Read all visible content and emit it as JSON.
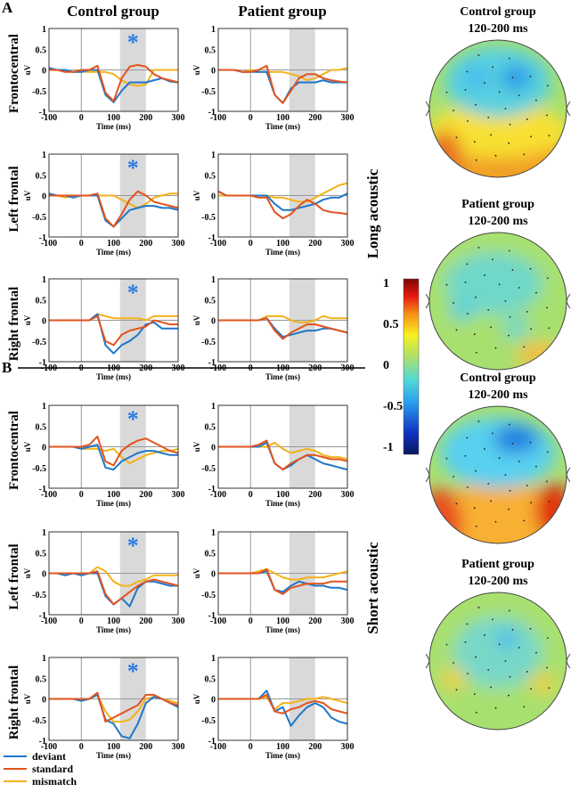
{
  "colors": {
    "deviant": "#1f77c9",
    "standard": "#e2531e",
    "mismatch": "#f2b21b",
    "window": "#d9d9d9",
    "asterisk": "#2a7ae2"
  },
  "labels": {
    "panel_a": "A",
    "panel_b": "B",
    "col_control": "Control group",
    "col_patient": "Patient group",
    "long": "Long acoustic",
    "short": "Short acoustic",
    "rows": [
      "Frontocentral",
      "Left frontal",
      "Right frontal",
      "Frontocentral",
      "Left frontal",
      "Right frontal"
    ],
    "asterisk": "*"
  },
  "legend": [
    {
      "key": "deviant",
      "label": "deviant"
    },
    {
      "key": "standard",
      "label": "standard"
    },
    {
      "key": "mismatch",
      "label": "mismatch"
    }
  ],
  "topomaps": [
    {
      "title": "Control group",
      "window": "120-200 ms"
    },
    {
      "title": "Patient group",
      "window": "120-200 ms"
    },
    {
      "title": "Control group",
      "window": "120-200 ms"
    },
    {
      "title": "Patient group",
      "window": "120-200 ms"
    }
  ],
  "colorbar": {
    "ticks": [
      "1",
      "0.5",
      "0",
      "-0.5",
      "-1"
    ],
    "range": [
      -1,
      1
    ]
  },
  "chart_data": {
    "type": "line",
    "xlabel": "Time (ms)",
    "ylabel": "uV",
    "xlim": [
      -100,
      300
    ],
    "ylim": [
      -1,
      1
    ],
    "xticks": [
      "-100",
      "0",
      "100",
      "200",
      "300"
    ],
    "yticks": [
      "1",
      "0.5",
      "0",
      "-0.5",
      "-1"
    ],
    "shaded_window": [
      120,
      200
    ],
    "x": [
      -100,
      -75,
      -50,
      -25,
      0,
      25,
      50,
      75,
      100,
      125,
      150,
      175,
      200,
      225,
      250,
      275,
      300
    ],
    "panels": [
      {
        "condition": "Long acoustic",
        "region": "Frontocentral",
        "group": "Control group",
        "significant": true,
        "series": {
          "deviant": [
            0.05,
            0,
            0,
            -0.05,
            -0.05,
            0,
            0,
            -0.6,
            -0.78,
            -0.5,
            -0.3,
            -0.3,
            -0.3,
            -0.25,
            -0.2,
            -0.28,
            -0.3
          ],
          "standard": [
            0,
            0,
            -0.05,
            -0.05,
            0,
            0,
            0.1,
            -0.55,
            -0.75,
            -0.2,
            0.08,
            0.12,
            0.08,
            -0.1,
            -0.2,
            -0.25,
            -0.3
          ],
          "mismatch": [
            0,
            0,
            0,
            -0.05,
            -0.05,
            -0.05,
            -0.05,
            -0.05,
            -0.1,
            -0.25,
            -0.35,
            -0.38,
            -0.35,
            0,
            0,
            0,
            0
          ]
        }
      },
      {
        "condition": "Long acoustic",
        "region": "Frontocentral",
        "group": "Patient group",
        "significant": false,
        "series": {
          "deviant": [
            0,
            0,
            0,
            -0.05,
            -0.05,
            -0.05,
            -0.05,
            -0.6,
            -0.8,
            -0.45,
            -0.3,
            -0.3,
            -0.3,
            -0.25,
            -0.3,
            -0.3,
            -0.3
          ],
          "standard": [
            0,
            0,
            0,
            -0.05,
            -0.05,
            0,
            0.1,
            -0.6,
            -0.8,
            -0.5,
            -0.2,
            -0.1,
            -0.1,
            -0.2,
            -0.25,
            -0.28,
            -0.3
          ],
          "mismatch": [
            0,
            0,
            0,
            -0.05,
            0,
            -0.05,
            -0.05,
            -0.05,
            -0.05,
            -0.1,
            -0.15,
            -0.25,
            -0.2,
            -0.1,
            0,
            0,
            0.05
          ]
        }
      },
      {
        "condition": "Long acoustic",
        "region": "Left frontal",
        "group": "Control group",
        "significant": true,
        "series": {
          "deviant": [
            0.05,
            0,
            0,
            -0.05,
            0,
            0,
            0,
            -0.6,
            -0.75,
            -0.55,
            -0.35,
            -0.3,
            -0.25,
            -0.25,
            -0.3,
            -0.3,
            -0.35
          ],
          "standard": [
            0,
            0,
            0,
            0,
            0,
            0,
            0.05,
            -0.55,
            -0.75,
            -0.45,
            -0.1,
            0.1,
            0,
            -0.15,
            -0.2,
            -0.25,
            -0.3
          ],
          "mismatch": [
            0,
            0,
            -0.05,
            0,
            0,
            0,
            0,
            0,
            0,
            -0.1,
            -0.2,
            -0.3,
            -0.2,
            -0.05,
            0,
            0.05,
            0.05
          ]
        }
      },
      {
        "condition": "Long acoustic",
        "region": "Left frontal",
        "group": "Patient group",
        "significant": false,
        "series": {
          "deviant": [
            0.1,
            0,
            0,
            0,
            0,
            0,
            0,
            -0.2,
            -0.35,
            -0.35,
            -0.3,
            -0.25,
            -0.2,
            -0.1,
            -0.05,
            -0.05,
            0.05
          ],
          "standard": [
            0.1,
            0,
            0,
            0,
            0,
            -0.05,
            -0.05,
            -0.4,
            -0.55,
            -0.45,
            -0.25,
            -0.1,
            -0.2,
            -0.35,
            -0.4,
            -0.42,
            -0.45
          ],
          "mismatch": [
            0,
            0,
            0,
            0,
            0,
            0,
            0,
            -0.05,
            -0.05,
            -0.1,
            -0.15,
            -0.15,
            -0.05,
            0.05,
            0.15,
            0.25,
            0.3
          ]
        }
      },
      {
        "condition": "Long acoustic",
        "region": "Right frontal",
        "group": "Control group",
        "significant": true,
        "series": {
          "deviant": [
            0,
            0,
            0,
            0,
            0,
            0,
            0.15,
            -0.6,
            -0.8,
            -0.6,
            -0.5,
            -0.35,
            -0.1,
            -0.05,
            -0.2,
            -0.2,
            -0.2
          ],
          "standard": [
            0,
            0,
            0,
            0,
            0,
            0,
            0.1,
            -0.5,
            -0.6,
            -0.35,
            -0.25,
            -0.2,
            -0.15,
            0,
            -0.05,
            -0.1,
            -0.1
          ],
          "mismatch": [
            0,
            0,
            0,
            0,
            0,
            0,
            0.15,
            0.1,
            0.05,
            0.05,
            0.05,
            0.05,
            0,
            0.1,
            0.1,
            0.1,
            0.1
          ]
        }
      },
      {
        "condition": "Long acoustic",
        "region": "Right frontal",
        "group": "Patient group",
        "significant": false,
        "series": {
          "deviant": [
            0,
            0,
            0,
            0,
            0,
            0,
            0.05,
            -0.2,
            -0.4,
            -0.35,
            -0.3,
            -0.25,
            -0.25,
            -0.2,
            -0.2,
            -0.25,
            -0.3
          ],
          "standard": [
            0,
            0,
            0,
            0,
            0,
            0,
            0.05,
            -0.25,
            -0.45,
            -0.3,
            -0.2,
            -0.1,
            -0.1,
            -0.15,
            -0.2,
            -0.25,
            -0.3
          ],
          "mismatch": [
            0,
            0,
            0,
            0,
            0,
            0,
            0.1,
            0.1,
            0.1,
            0,
            -0.05,
            -0.05,
            0,
            0.1,
            0.05,
            0.05,
            0.05
          ]
        }
      },
      {
        "condition": "Short acoustic",
        "region": "Frontocentral",
        "group": "Control group",
        "significant": true,
        "series": {
          "deviant": [
            0,
            0,
            0,
            0,
            -0.05,
            0,
            0.05,
            -0.5,
            -0.55,
            -0.35,
            -0.25,
            -0.15,
            -0.1,
            -0.1,
            -0.15,
            -0.2,
            -0.2
          ],
          "standard": [
            0,
            0,
            0,
            0,
            0,
            0.05,
            0.25,
            -0.35,
            -0.45,
            -0.1,
            0.05,
            0.15,
            0.2,
            0.1,
            0,
            -0.1,
            -0.15
          ],
          "mismatch": [
            0,
            0,
            0,
            0,
            -0.05,
            -0.05,
            -0.05,
            -0.1,
            -0.05,
            -0.25,
            -0.4,
            -0.3,
            -0.2,
            -0.15,
            -0.1,
            -0.1,
            -0.05
          ]
        }
      },
      {
        "condition": "Short acoustic",
        "region": "Frontocentral",
        "group": "Patient group",
        "significant": false,
        "series": {
          "deviant": [
            0,
            0,
            0,
            0,
            0,
            0,
            0.1,
            -0.4,
            -0.55,
            -0.45,
            -0.3,
            -0.2,
            -0.3,
            -0.4,
            -0.45,
            -0.5,
            -0.55
          ],
          "standard": [
            0,
            0,
            0,
            0,
            0,
            0.05,
            0.15,
            -0.4,
            -0.55,
            -0.4,
            -0.3,
            -0.2,
            -0.2,
            -0.25,
            -0.3,
            -0.3,
            -0.35
          ],
          "mismatch": [
            0,
            0,
            0,
            0,
            0,
            0,
            0,
            0.1,
            -0.05,
            -0.15,
            -0.1,
            -0.05,
            -0.1,
            -0.2,
            -0.25,
            -0.25,
            -0.3
          ]
        }
      },
      {
        "condition": "Short acoustic",
        "region": "Left frontal",
        "group": "Control group",
        "significant": true,
        "series": {
          "deviant": [
            0,
            0,
            -0.05,
            0,
            -0.05,
            0,
            0,
            -0.55,
            -0.75,
            -0.6,
            -0.8,
            -0.35,
            -0.2,
            -0.2,
            -0.25,
            -0.3,
            -0.3
          ],
          "standard": [
            0,
            0,
            0,
            0,
            0,
            0,
            0.05,
            -0.5,
            -0.75,
            -0.6,
            -0.45,
            -0.3,
            -0.2,
            -0.15,
            -0.2,
            -0.25,
            -0.3
          ],
          "mismatch": [
            0,
            0,
            0,
            0,
            0,
            0,
            0.15,
            0.05,
            -0.2,
            -0.3,
            -0.3,
            -0.2,
            -0.15,
            -0.05,
            -0.05,
            -0.05,
            -0.05
          ]
        }
      },
      {
        "condition": "Short acoustic",
        "region": "Left frontal",
        "group": "Patient group",
        "significant": false,
        "series": {
          "deviant": [
            0,
            0,
            0,
            0,
            0,
            0,
            0.05,
            -0.4,
            -0.45,
            -0.3,
            -0.2,
            -0.25,
            -0.3,
            -0.3,
            -0.35,
            -0.35,
            -0.4
          ],
          "standard": [
            0,
            0,
            0,
            0,
            0,
            0,
            0.1,
            -0.4,
            -0.5,
            -0.35,
            -0.3,
            -0.25,
            -0.25,
            -0.25,
            -0.2,
            -0.2,
            -0.2
          ],
          "mismatch": [
            0,
            0,
            0,
            0,
            0,
            0.05,
            0.1,
            0,
            -0.1,
            -0.15,
            -0.15,
            -0.1,
            -0.1,
            -0.1,
            -0.05,
            0,
            0.05
          ]
        }
      },
      {
        "condition": "Short acoustic",
        "region": "Right frontal",
        "group": "Control group",
        "significant": true,
        "series": {
          "deviant": [
            0,
            0,
            0,
            0,
            -0.05,
            0,
            0.1,
            -0.5,
            -0.6,
            -0.9,
            -0.95,
            -0.6,
            -0.1,
            0.05,
            0,
            -0.1,
            -0.2
          ],
          "standard": [
            0,
            0,
            0,
            0,
            0,
            0,
            0.15,
            -0.55,
            -0.45,
            -0.35,
            -0.25,
            -0.15,
            0.1,
            0.1,
            0,
            -0.1,
            -0.15
          ],
          "mismatch": [
            0,
            0,
            0,
            0,
            0,
            0,
            0.1,
            -0.3,
            -0.55,
            -0.55,
            -0.5,
            -0.3,
            0,
            0.05,
            0,
            -0.05,
            -0.1
          ]
        }
      },
      {
        "condition": "Short acoustic",
        "region": "Right frontal",
        "group": "Patient group",
        "significant": false,
        "series": {
          "deviant": [
            0,
            0,
            0,
            0,
            0,
            0,
            0.2,
            -0.3,
            -0.2,
            -0.65,
            -0.4,
            -0.2,
            -0.1,
            -0.2,
            -0.45,
            -0.55,
            -0.6
          ],
          "standard": [
            0,
            0,
            0,
            0,
            0,
            0,
            0.1,
            -0.3,
            -0.35,
            -0.25,
            -0.2,
            -0.1,
            -0.05,
            -0.1,
            -0.25,
            -0.3,
            -0.35
          ],
          "mismatch": [
            0,
            0,
            0,
            0,
            0,
            0,
            0.05,
            -0.25,
            -0.1,
            -0.1,
            -0.05,
            0,
            0,
            0.05,
            0,
            -0.05,
            -0.1
          ]
        }
      }
    ]
  }
}
